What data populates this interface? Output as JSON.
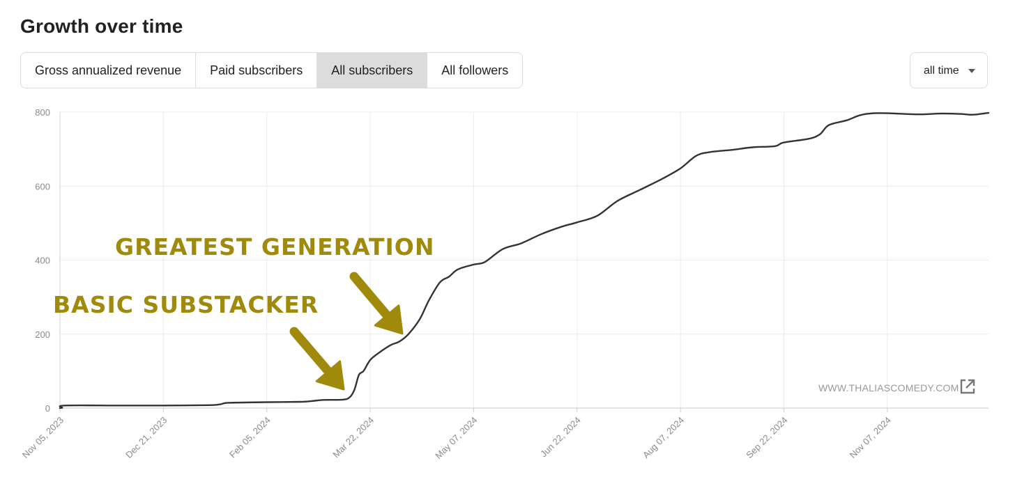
{
  "page": {
    "title": "Growth over time",
    "tabs": [
      {
        "label": "Gross annualized revenue",
        "active": false
      },
      {
        "label": "Paid subscribers",
        "active": false
      },
      {
        "label": "All subscribers",
        "active": true
      },
      {
        "label": "All followers",
        "active": false
      }
    ],
    "range_select": {
      "value": "all time"
    },
    "watermark": "WWW.THALIASCOMEDY.COM",
    "annotations": [
      {
        "text": "GREATEST GENERATION",
        "color": "#a08a0c"
      },
      {
        "text": "BASIC SUBSTACKER",
        "color": "#a08a0c"
      }
    ]
  },
  "chart_data": {
    "type": "line",
    "xlabel": "",
    "ylabel": "",
    "ylim": [
      0,
      800
    ],
    "yticks": [
      0,
      200,
      400,
      600,
      800
    ],
    "xlim": [
      "2023-11-05",
      "2024-12-22"
    ],
    "xticks": [
      "Nov 05, 2023",
      "Dec 21, 2023",
      "Feb 05, 2024",
      "Mar 22, 2024",
      "May 07, 2024",
      "Jun 22, 2024",
      "Aug 07, 2024",
      "Sep 22, 2024",
      "Nov 07, 2024"
    ],
    "grid": true,
    "line_color": "#333333",
    "series": [
      {
        "points": [
          [
            "2023-11-05",
            0
          ],
          [
            "2023-11-06",
            1
          ],
          [
            "2023-11-07",
            7
          ],
          [
            "2023-12-01",
            7
          ],
          [
            "2023-12-21",
            7
          ],
          [
            "2024-01-10",
            8
          ],
          [
            "2024-01-15",
            10
          ],
          [
            "2024-01-18",
            14
          ],
          [
            "2024-01-25",
            15
          ],
          [
            "2024-02-05",
            16
          ],
          [
            "2024-02-20",
            17
          ],
          [
            "2024-02-25",
            19
          ],
          [
            "2024-03-01",
            22
          ],
          [
            "2024-03-10",
            23
          ],
          [
            "2024-03-13",
            30
          ],
          [
            "2024-03-15",
            50
          ],
          [
            "2024-03-17",
            90
          ],
          [
            "2024-03-19",
            100
          ],
          [
            "2024-03-22",
            130
          ],
          [
            "2024-03-26",
            150
          ],
          [
            "2024-03-31",
            170
          ],
          [
            "2024-04-04",
            180
          ],
          [
            "2024-04-08",
            200
          ],
          [
            "2024-04-13",
            240
          ],
          [
            "2024-04-17",
            290
          ],
          [
            "2024-04-22",
            340
          ],
          [
            "2024-04-26",
            355
          ],
          [
            "2024-04-30",
            375
          ],
          [
            "2024-05-07",
            388
          ],
          [
            "2024-05-12",
            395
          ],
          [
            "2024-05-20",
            430
          ],
          [
            "2024-05-28",
            445
          ],
          [
            "2024-06-06",
            470
          ],
          [
            "2024-06-15",
            490
          ],
          [
            "2024-06-22",
            502
          ],
          [
            "2024-07-01",
            520
          ],
          [
            "2024-07-10",
            560
          ],
          [
            "2024-07-20",
            590
          ],
          [
            "2024-07-30",
            620
          ],
          [
            "2024-08-07",
            648
          ],
          [
            "2024-08-14",
            682
          ],
          [
            "2024-08-20",
            692
          ],
          [
            "2024-08-30",
            698
          ],
          [
            "2024-09-08",
            705
          ],
          [
            "2024-09-18",
            708
          ],
          [
            "2024-09-22",
            718
          ],
          [
            "2024-10-03",
            728
          ],
          [
            "2024-10-08",
            740
          ],
          [
            "2024-10-12",
            765
          ],
          [
            "2024-10-20",
            778
          ],
          [
            "2024-10-26",
            792
          ],
          [
            "2024-11-01",
            797
          ],
          [
            "2024-11-07",
            797
          ],
          [
            "2024-11-15",
            795
          ],
          [
            "2024-11-22",
            794
          ],
          [
            "2024-12-01",
            796
          ],
          [
            "2024-12-10",
            795
          ],
          [
            "2024-12-15",
            793
          ],
          [
            "2024-12-22",
            798
          ]
        ]
      }
    ]
  }
}
